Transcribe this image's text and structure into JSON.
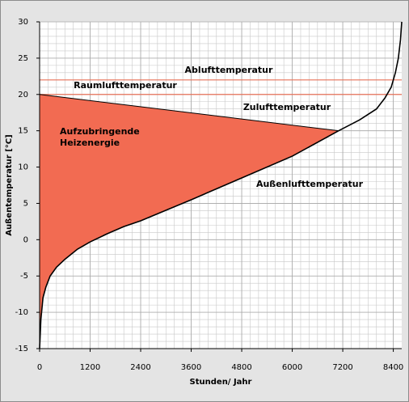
{
  "chart_data": {
    "type": "line",
    "xlabel": "Stunden/ Jahr",
    "ylabel": "Außentemperatur [°C]",
    "xlim": [
      0,
      8600
    ],
    "ylim": [
      -15,
      30
    ],
    "xticks": [
      0,
      1200,
      2400,
      3600,
      4800,
      6000,
      7200,
      8400
    ],
    "yticks": [
      -15,
      -10,
      -5,
      0,
      5,
      10,
      15,
      20,
      25,
      30
    ],
    "grid": true,
    "minor_grid": {
      "x": 200,
      "y": 1
    },
    "series": [
      {
        "name": "Außenlufttemperatur",
        "color": "#000000",
        "x": [
          0,
          30,
          80,
          150,
          250,
          400,
          600,
          900,
          1200,
          1600,
          2000,
          2400,
          3600,
          4800,
          6000,
          7100,
          7600,
          8000,
          8200,
          8350,
          8450,
          8520,
          8570,
          8600
        ],
        "values": [
          -15,
          -11,
          -8,
          -6.5,
          -5,
          -3.8,
          -2.7,
          -1.3,
          -0.3,
          0.8,
          1.8,
          2.6,
          5.5,
          8.5,
          11.5,
          15,
          16.5,
          18,
          19.5,
          21,
          23,
          25,
          27.5,
          30
        ]
      },
      {
        "name": "Zulufttemperatur",
        "color": "#000000",
        "x": [
          0,
          7100
        ],
        "values": [
          20,
          15
        ]
      },
      {
        "name": "Raumlufttemperatur",
        "color": "#e8735a",
        "x": [
          0,
          8600
        ],
        "values": [
          20,
          20
        ]
      },
      {
        "name": "Ablufttemperatur",
        "color": "#e8735a",
        "x": [
          0,
          8600
        ],
        "values": [
          22,
          22
        ]
      }
    ],
    "fill": {
      "label": [
        "Aufzubringende",
        "Heizenergie"
      ],
      "color": "#f26b52",
      "upper": 1,
      "lower": 0
    }
  }
}
